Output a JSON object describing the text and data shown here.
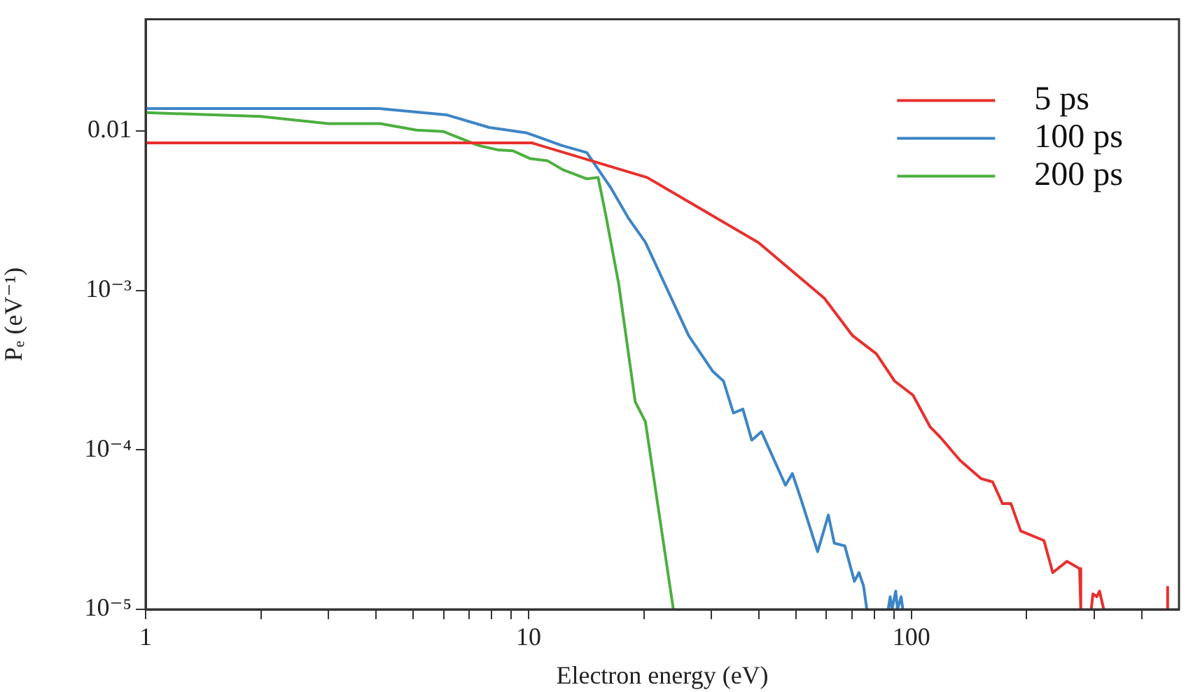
{
  "chart_data": {
    "type": "line",
    "xlabel": "Electron energy (eV)",
    "ylabel": "Pₑ (eV⁻¹)",
    "log": "xy",
    "xlim": [
      1,
      500
    ],
    "ylim": [
      1e-05,
      0.05
    ],
    "xticks": [
      1,
      {
        "value": 2,
        "label": null
      },
      {
        "value": 3,
        "label": null
      },
      {
        "value": 4,
        "label": null
      },
      {
        "value": 5,
        "label": null
      },
      {
        "value": 6,
        "label": null
      },
      {
        "value": 7,
        "label": null
      },
      {
        "value": 8,
        "label": null
      },
      {
        "value": 9,
        "label": null
      },
      10,
      {
        "value": 20,
        "label": null
      },
      {
        "value": 30,
        "label": null
      },
      {
        "value": 40,
        "label": null
      },
      {
        "value": 50,
        "label": null
      },
      {
        "value": 60,
        "label": null
      },
      {
        "value": 70,
        "label": null
      },
      {
        "value": 80,
        "label": null
      },
      {
        "value": 90,
        "label": null
      },
      100,
      {
        "value": 200,
        "label": null
      },
      {
        "value": 300,
        "label": null
      },
      {
        "value": 400,
        "label": null
      }
    ],
    "yticks": [
      {
        "value": 1e-05,
        "label": "10⁻⁵"
      },
      {
        "value": 0.0001,
        "label": "10⁻⁴"
      },
      {
        "value": 0.001,
        "label": "10⁻³"
      },
      0.01
    ],
    "grid": false,
    "legend": "top right",
    "marker": "none",
    "line_style": "solid",
    "series": [
      {
        "name": "5 ps",
        "color": "#e8302e",
        "x": [
          1,
          10.2,
          20.4,
          39.9,
          59.3,
          70.2,
          81,
          90.4,
          101,
          112,
          119,
          134,
          152,
          163,
          173,
          182,
          193,
          222,
          234,
          255,
          275,
          277,
          null,
          295,
          298,
          305,
          310,
          318,
          null,
          467,
          467
        ],
        "values": [
          0.0084,
          0.0084,
          0.0051,
          0.00199,
          0.00089,
          0.00052,
          0.0004,
          0.00027,
          0.00022,
          0.000139,
          0.00012,
          8.6e-05,
          6.6e-05,
          6.3e-05,
          4.6e-05,
          4.6e-05,
          3.1e-05,
          2.7e-05,
          1.7e-05,
          2e-05,
          1.8e-05,
          1e-05,
          null,
          1e-05,
          1.25e-05,
          1.2e-05,
          1.3e-05,
          1e-05,
          null,
          1e-05,
          1.4e-05
        ]
      },
      {
        "name": "100 ps",
        "color": "#3d85c6",
        "x": [
          1,
          4.08,
          6.1,
          7.9,
          9.9,
          12.2,
          14.2,
          16.4,
          18.3,
          20.2,
          26.2,
          30.3,
          32.3,
          34.3,
          36.3,
          38.3,
          40.6,
          46.9,
          48.9,
          51.5,
          56.9,
          60.7,
          62.9,
          67,
          71,
          73,
          75,
          76.5,
          null,
          87,
          88,
          89,
          91,
          92,
          94,
          95
        ],
        "values": [
          0.0138,
          0.0138,
          0.0126,
          0.0105,
          0.0097,
          0.0081,
          0.0073,
          0.0044,
          0.0028,
          0.002,
          0.00052,
          0.00031,
          0.00027,
          0.00017,
          0.00018,
          0.000115,
          0.00013,
          6e-05,
          7.1e-05,
          4.9e-05,
          2.3e-05,
          3.9e-05,
          2.6e-05,
          2.5e-05,
          1.5e-05,
          1.7e-05,
          1.4e-05,
          1e-05,
          null,
          1e-05,
          1.2e-05,
          1e-05,
          1.3e-05,
          1e-05,
          1.2e-05,
          1e-05
        ]
      },
      {
        "name": "200 ps",
        "color": "#4caf3f",
        "x": [
          1,
          2,
          3,
          4.1,
          5.1,
          6,
          7.4,
          8.3,
          9.1,
          10.1,
          11.2,
          12.3,
          14.2,
          15.2,
          15.9,
          17.2,
          19,
          20.2,
          23.9
        ],
        "values": [
          0.013,
          0.0123,
          0.0111,
          0.0111,
          0.0101,
          0.0099,
          0.0081,
          0.0076,
          0.0075,
          0.0067,
          0.0065,
          0.0057,
          0.005,
          0.0051,
          0.003,
          0.0011,
          0.0002,
          0.00015,
          1e-05
        ]
      }
    ]
  }
}
